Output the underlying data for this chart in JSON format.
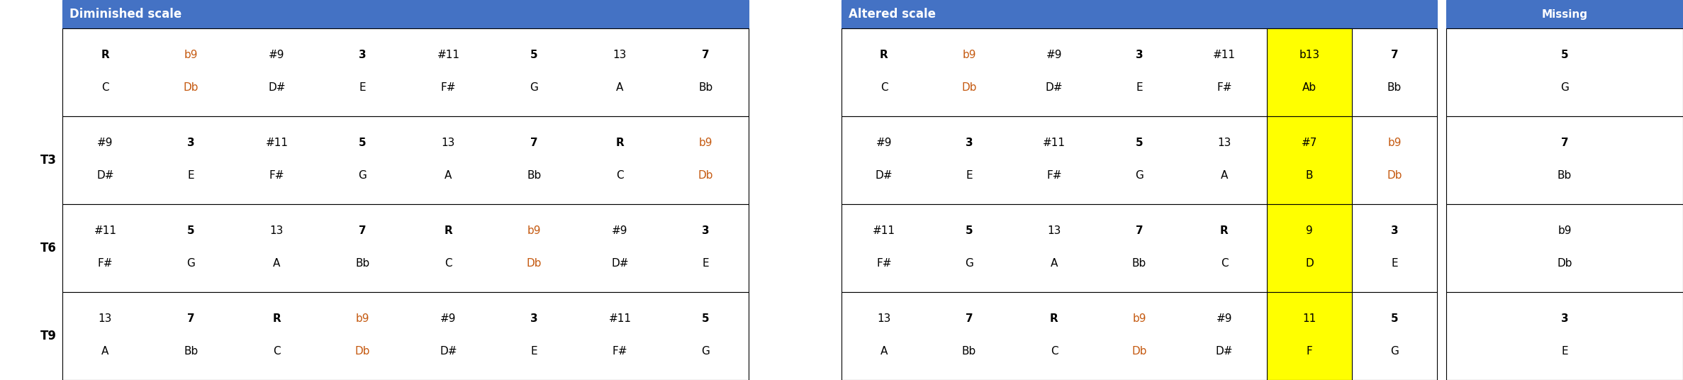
{
  "header_color": "#4472C4",
  "header_text_color": "#FFFFFF",
  "yellow_bg": "#FFFF00",
  "orange_text": "#C55A11",
  "black_text": "#000000",
  "dim_header": "Diminished scale",
  "alt_header": "Altered scale",
  "miss_header": "Missing",
  "sections": [
    {
      "row_label": "",
      "dim": [
        {
          "t": "R",
          "note": "C",
          "bold": true,
          "orange": false
        },
        {
          "t": "b9",
          "note": "Db",
          "bold": false,
          "orange": true
        },
        {
          "t": "#9",
          "note": "D#",
          "bold": false,
          "orange": false
        },
        {
          "t": "3",
          "note": "E",
          "bold": true,
          "orange": false
        },
        {
          "t": "#11",
          "note": "F#",
          "bold": false,
          "orange": false
        },
        {
          "t": "5",
          "note": "G",
          "bold": true,
          "orange": false
        },
        {
          "t": "13",
          "note": "A",
          "bold": false,
          "orange": false
        },
        {
          "t": "7",
          "note": "Bb",
          "bold": true,
          "orange": false
        }
      ],
      "alt": [
        {
          "t": "R",
          "note": "C",
          "bold": true,
          "orange": false,
          "yellow": false
        },
        {
          "t": "b9",
          "note": "Db",
          "bold": false,
          "orange": true,
          "yellow": false
        },
        {
          "t": "#9",
          "note": "D#",
          "bold": false,
          "orange": false,
          "yellow": false
        },
        {
          "t": "3",
          "note": "E",
          "bold": true,
          "orange": false,
          "yellow": false
        },
        {
          "t": "#11",
          "note": "F#",
          "bold": false,
          "orange": false,
          "yellow": false
        },
        {
          "t": "b13",
          "note": "Ab",
          "bold": false,
          "orange": false,
          "yellow": true
        },
        {
          "t": "7",
          "note": "Bb",
          "bold": true,
          "orange": false,
          "yellow": false
        }
      ],
      "miss": {
        "t": "5",
        "note": "G",
        "bold": true
      }
    },
    {
      "row_label": "T3",
      "dim": [
        {
          "t": "#9",
          "note": "D#",
          "bold": false,
          "orange": false
        },
        {
          "t": "3",
          "note": "E",
          "bold": true,
          "orange": false
        },
        {
          "t": "#11",
          "note": "F#",
          "bold": false,
          "orange": false
        },
        {
          "t": "5",
          "note": "G",
          "bold": true,
          "orange": false
        },
        {
          "t": "13",
          "note": "A",
          "bold": false,
          "orange": false
        },
        {
          "t": "7",
          "note": "Bb",
          "bold": true,
          "orange": false
        },
        {
          "t": "R",
          "note": "C",
          "bold": true,
          "orange": false
        },
        {
          "t": "b9",
          "note": "Db",
          "bold": false,
          "orange": true
        }
      ],
      "alt": [
        {
          "t": "#9",
          "note": "D#",
          "bold": false,
          "orange": false,
          "yellow": false
        },
        {
          "t": "3",
          "note": "E",
          "bold": true,
          "orange": false,
          "yellow": false
        },
        {
          "t": "#11",
          "note": "F#",
          "bold": false,
          "orange": false,
          "yellow": false
        },
        {
          "t": "5",
          "note": "G",
          "bold": true,
          "orange": false,
          "yellow": false
        },
        {
          "t": "13",
          "note": "A",
          "bold": false,
          "orange": false,
          "yellow": false
        },
        {
          "t": "#7",
          "note": "B",
          "bold": false,
          "orange": false,
          "yellow": true
        },
        {
          "t": "b9",
          "note": "Db",
          "bold": false,
          "orange": true,
          "yellow": false
        }
      ],
      "miss": {
        "t": "7",
        "note": "Bb",
        "bold": true
      }
    },
    {
      "row_label": "T6",
      "dim": [
        {
          "t": "#11",
          "note": "F#",
          "bold": false,
          "orange": false
        },
        {
          "t": "5",
          "note": "G",
          "bold": true,
          "orange": false
        },
        {
          "t": "13",
          "note": "A",
          "bold": false,
          "orange": false
        },
        {
          "t": "7",
          "note": "Bb",
          "bold": true,
          "orange": false
        },
        {
          "t": "R",
          "note": "C",
          "bold": true,
          "orange": false
        },
        {
          "t": "b9",
          "note": "Db",
          "bold": false,
          "orange": true
        },
        {
          "t": "#9",
          "note": "D#",
          "bold": false,
          "orange": false
        },
        {
          "t": "3",
          "note": "E",
          "bold": true,
          "orange": false
        }
      ],
      "alt": [
        {
          "t": "#11",
          "note": "F#",
          "bold": false,
          "orange": false,
          "yellow": false
        },
        {
          "t": "5",
          "note": "G",
          "bold": true,
          "orange": false,
          "yellow": false
        },
        {
          "t": "13",
          "note": "A",
          "bold": false,
          "orange": false,
          "yellow": false
        },
        {
          "t": "7",
          "note": "Bb",
          "bold": true,
          "orange": false,
          "yellow": false
        },
        {
          "t": "R",
          "note": "C",
          "bold": true,
          "orange": false,
          "yellow": false
        },
        {
          "t": "9",
          "note": "D",
          "bold": false,
          "orange": false,
          "yellow": true
        },
        {
          "t": "3",
          "note": "E",
          "bold": true,
          "orange": false,
          "yellow": false
        }
      ],
      "miss": {
        "t": "b9",
        "note": "Db",
        "bold": false
      }
    },
    {
      "row_label": "T9",
      "dim": [
        {
          "t": "13",
          "note": "A",
          "bold": false,
          "orange": false
        },
        {
          "t": "7",
          "note": "Bb",
          "bold": true,
          "orange": false
        },
        {
          "t": "R",
          "note": "C",
          "bold": true,
          "orange": false
        },
        {
          "t": "b9",
          "note": "Db",
          "bold": false,
          "orange": true
        },
        {
          "t": "#9",
          "note": "D#",
          "bold": false,
          "orange": false
        },
        {
          "t": "3",
          "note": "E",
          "bold": true,
          "orange": false
        },
        {
          "t": "#11",
          "note": "F#",
          "bold": false,
          "orange": false
        },
        {
          "t": "5",
          "note": "G",
          "bold": true,
          "orange": false
        }
      ],
      "alt": [
        {
          "t": "13",
          "note": "A",
          "bold": false,
          "orange": false,
          "yellow": false
        },
        {
          "t": "7",
          "note": "Bb",
          "bold": true,
          "orange": false,
          "yellow": false
        },
        {
          "t": "R",
          "note": "C",
          "bold": true,
          "orange": false,
          "yellow": false
        },
        {
          "t": "b9",
          "note": "Db",
          "bold": false,
          "orange": true,
          "yellow": false
        },
        {
          "t": "#9",
          "note": "D#",
          "bold": false,
          "orange": false,
          "yellow": false
        },
        {
          "t": "11",
          "note": "F",
          "bold": false,
          "orange": false,
          "yellow": true
        },
        {
          "t": "5",
          "note": "G",
          "bold": true,
          "orange": false,
          "yellow": false
        }
      ],
      "miss": {
        "t": "3",
        "note": "E",
        "bold": true
      }
    }
  ]
}
